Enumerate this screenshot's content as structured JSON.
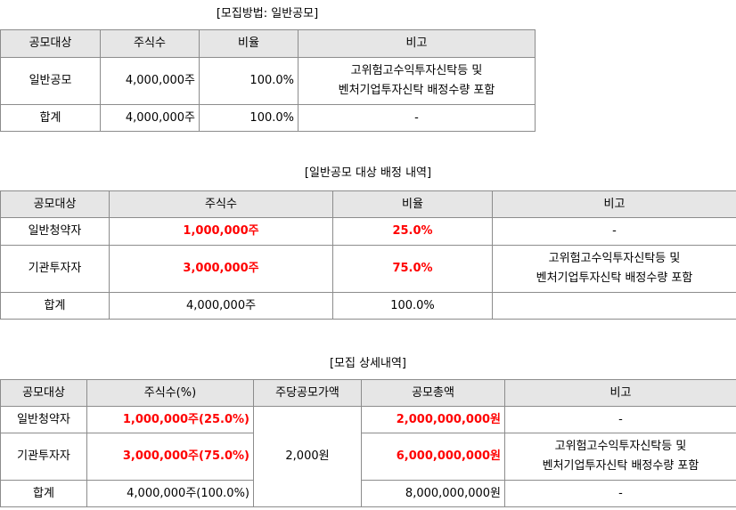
{
  "section1": {
    "caption": "[모집방법: 일반공모]",
    "headers": [
      "공모대상",
      "주식수",
      "비율",
      "비고"
    ],
    "rows": [
      {
        "target": "일반공모",
        "shares": "4,000,000주",
        "ratio": "100.0%",
        "note1": "고위험고수익투자신탁등 및",
        "note2": "벤처기업투자신탁 배정수량 포함"
      },
      {
        "target": "합계",
        "shares": "4,000,000주",
        "ratio": "100.0%",
        "note1": "-"
      }
    ]
  },
  "section2": {
    "caption": "[일반공모 대상 배정 내역]",
    "headers": [
      "공모대상",
      "주식수",
      "비율",
      "비고"
    ],
    "rows": [
      {
        "target": "일반청약자",
        "shares": "1,000,000주",
        "ratio": "25.0%",
        "note1": "-"
      },
      {
        "target": "기관투자자",
        "shares": "3,000,000주",
        "ratio": "75.0%",
        "note1": "고위험고수익투자신탁등 및",
        "note2": "벤처기업투자신탁 배정수량 포함"
      },
      {
        "target": "합계",
        "shares": "4,000,000주",
        "ratio": "100.0%",
        "note1": ""
      }
    ]
  },
  "section3": {
    "caption": "[모집 상세내역]",
    "headers": [
      "공모대상",
      "주식수(%)",
      "주당공모가액",
      "공모총액",
      "비고"
    ],
    "price": "2,000원",
    "rows": [
      {
        "target": "일반청약자",
        "shares": "1,000,000주(25.0%)",
        "total": "2,000,000,000원",
        "note1": "-"
      },
      {
        "target": "기관투자자",
        "shares": "3,000,000주(75.0%)",
        "total": "6,000,000,000원",
        "note1": "고위험고수익투자신탁등 및",
        "note2": "벤처기업투자신탁 배정수량 포함"
      },
      {
        "target": "합계",
        "shares": "4,000,000주(100.0%)",
        "total": "8,000,000,000원",
        "note1": "-"
      }
    ]
  },
  "colors": {
    "highlight": "#ff0000",
    "header_bg": "#e6e6e6",
    "border": "#8c8c8c"
  }
}
